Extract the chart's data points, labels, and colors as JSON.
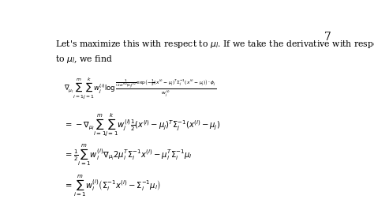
{
  "page_number": "7",
  "bg_color": "#ffffff",
  "text_color": "#000000",
  "figsize": [
    4.74,
    2.81
  ],
  "dpi": 100
}
